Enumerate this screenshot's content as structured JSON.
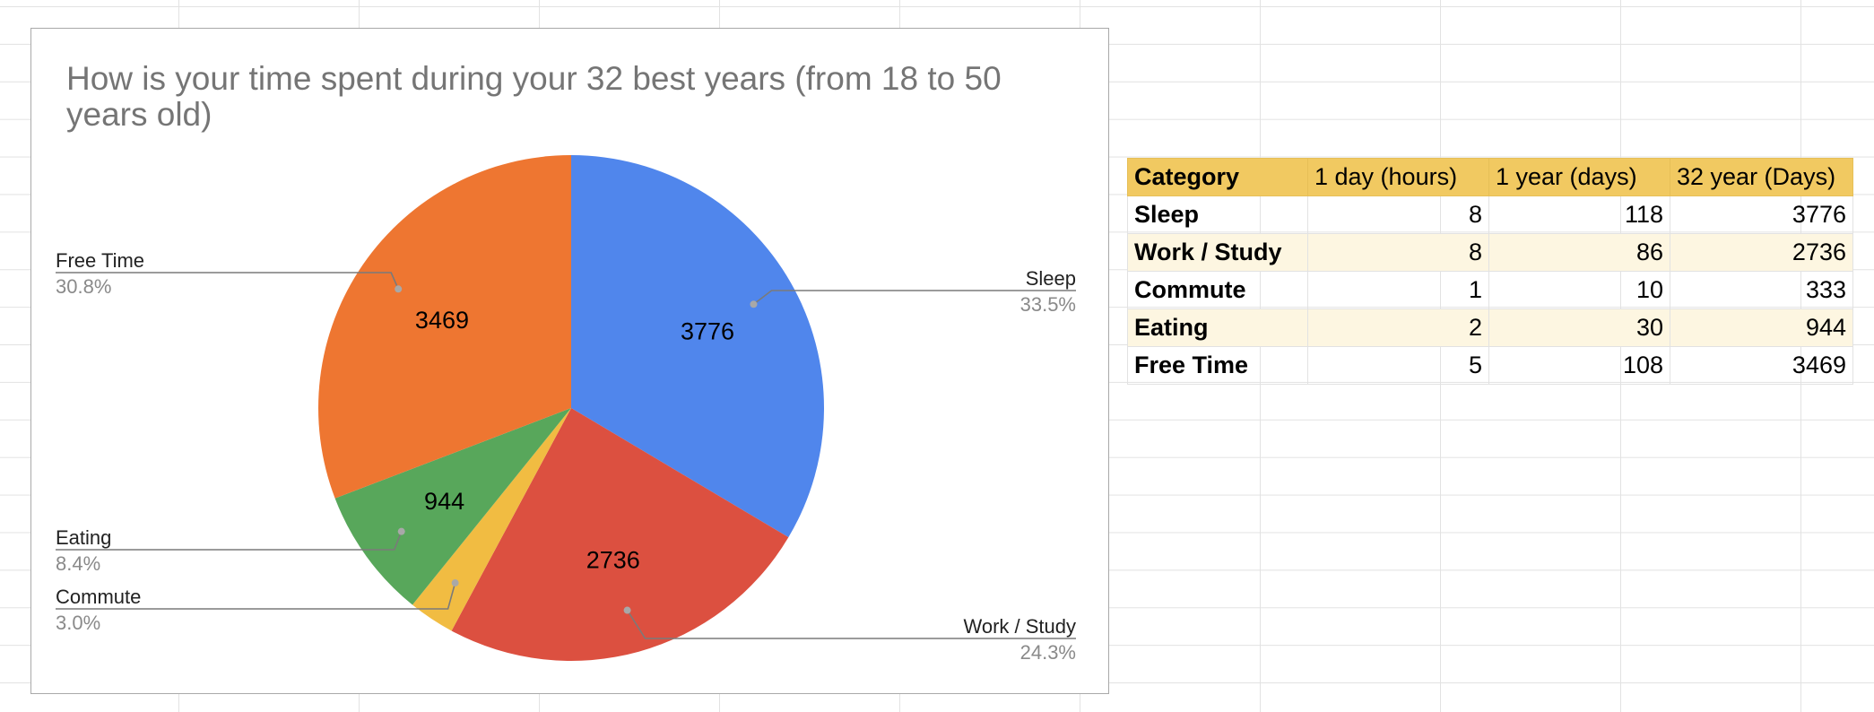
{
  "chart_data": {
    "type": "pie",
    "title": "How is your time spent during your 32 best years (from 18 to 50 years old)",
    "slices": [
      {
        "label": "Sleep",
        "value": 3776,
        "percent_label": "33.5%",
        "color": "#5086ec"
      },
      {
        "label": "Work / Study",
        "value": 2736,
        "percent_label": "24.3%",
        "color": "#dc5040"
      },
      {
        "label": "Commute",
        "value": 333,
        "percent_label": "3.0%",
        "color": "#f1bc42"
      },
      {
        "label": "Eating",
        "value": 944,
        "percent_label": "8.4%",
        "color": "#58a75b"
      },
      {
        "label": "Free Time",
        "value": 3469,
        "percent_label": "30.8%",
        "color": "#ee7631"
      }
    ],
    "value_labels_shown": [
      "Sleep",
      "Work / Study",
      "Eating",
      "Free Time"
    ]
  },
  "table": {
    "headers": [
      "Category",
      "1 day (hours)",
      "1 year (days)",
      "32 year (Days)"
    ],
    "rows": [
      [
        "Sleep",
        "8",
        "118",
        "3776"
      ],
      [
        "Work / Study",
        "8",
        "86",
        "2736"
      ],
      [
        "Commute",
        "1",
        "10",
        "333"
      ],
      [
        "Eating",
        "2",
        "30",
        "944"
      ],
      [
        "Free Time",
        "5",
        "108",
        "3469"
      ]
    ],
    "header_color": "#f1c961",
    "band_color": "#fdf6e1"
  }
}
